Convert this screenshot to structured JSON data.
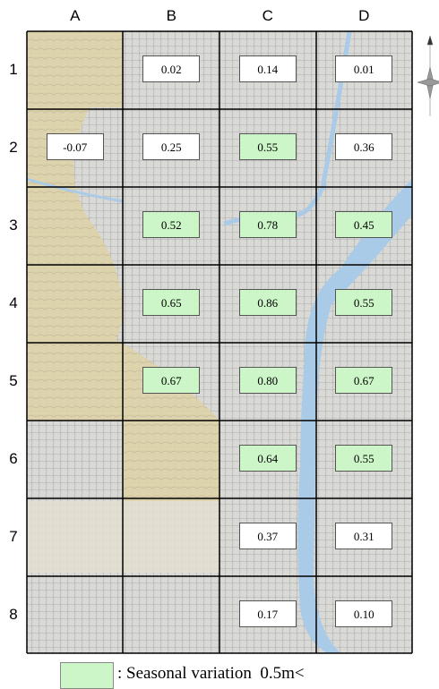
{
  "columns": [
    "A",
    "B",
    "C",
    "D"
  ],
  "rows": [
    "1",
    "2",
    "3",
    "4",
    "5",
    "6",
    "7",
    "8"
  ],
  "cells": [
    [
      null,
      "0.02",
      "0.14",
      "0.01"
    ],
    [
      "-0.07",
      "0.25",
      "0.55",
      "0.36"
    ],
    [
      null,
      "0.52",
      "0.78",
      "0.45"
    ],
    [
      null,
      "0.65",
      "0.86",
      "0.55"
    ],
    [
      null,
      "0.67",
      "0.80",
      "0.67"
    ],
    [
      null,
      null,
      "0.64",
      "0.55"
    ],
    [
      null,
      null,
      "0.37",
      "0.31"
    ],
    [
      null,
      null,
      "0.17",
      "0.10"
    ]
  ],
  "highlight": [
    [
      false,
      false,
      false,
      false
    ],
    [
      false,
      false,
      true,
      false
    ],
    [
      false,
      true,
      true,
      true
    ],
    [
      false,
      true,
      true,
      true
    ],
    [
      false,
      true,
      true,
      true
    ],
    [
      false,
      false,
      true,
      true
    ],
    [
      false,
      false,
      false,
      false
    ],
    [
      false,
      false,
      false,
      false
    ]
  ],
  "highlight_color": "#ccf5c8",
  "legend": {
    "text": ": Seasonal variation  0.5m<"
  }
}
